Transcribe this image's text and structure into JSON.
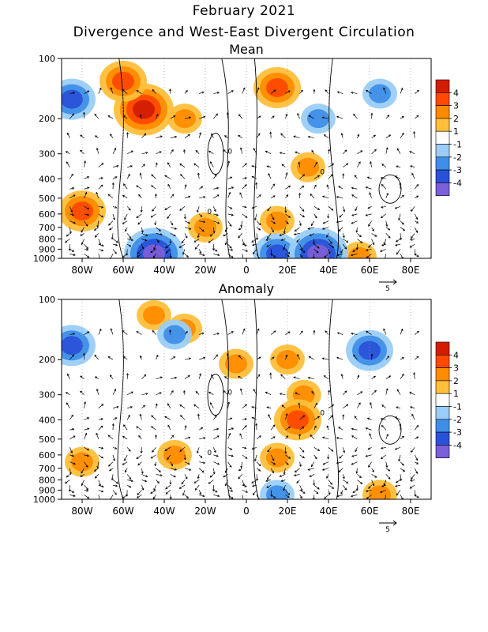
{
  "header": {
    "title": "February 2021",
    "subtitle": "Divergence and West-East Divergent Circulation"
  },
  "colors": {
    "scale": [
      "#7b5fd8",
      "#2a52d8",
      "#3f8fe8",
      "#9acdf7",
      "#ffffff",
      "#ffbf3a",
      "#ff8c00",
      "#ff4a00",
      "#d21e00"
    ],
    "contour": "#000000",
    "grid": "#9a9a9a",
    "vector": "#000000"
  },
  "chart_data": [
    {
      "type": "heatmap",
      "title": "Mean",
      "x_ticks": [
        "80W",
        "60W",
        "40W",
        "20W",
        "0",
        "20E",
        "40E",
        "60E",
        "80E"
      ],
      "x_tick_values": [
        -80,
        -60,
        -40,
        -20,
        0,
        20,
        40,
        60,
        80
      ],
      "xlim": [
        -90,
        90
      ],
      "y_ticks": [
        "100",
        "200",
        "300",
        "400",
        "500",
        "600",
        "700",
        "800",
        "900",
        "1000"
      ],
      "y_tick_values": [
        100,
        200,
        300,
        400,
        500,
        600,
        700,
        800,
        900,
        1000
      ],
      "ylim": [
        100,
        1000
      ],
      "y_scale": "log",
      "colorbar_labels": [
        "4",
        "3",
        "2",
        "1",
        "-1",
        "-2",
        "-3",
        "-4"
      ],
      "contour_labels": [
        "0",
        "0",
        "0"
      ],
      "vector_scale_label": "5",
      "features": [
        {
          "lon": -50,
          "p": 180,
          "value": 4
        },
        {
          "lon": -60,
          "p": 130,
          "value": 3
        },
        {
          "lon": -30,
          "p": 200,
          "value": 2
        },
        {
          "lon": 15,
          "p": 140,
          "value": 3
        },
        {
          "lon": 30,
          "p": 350,
          "value": 2
        },
        {
          "lon": -80,
          "p": 580,
          "value": 3
        },
        {
          "lon": -20,
          "p": 700,
          "value": 2
        },
        {
          "lon": 15,
          "p": 650,
          "value": 2
        },
        {
          "lon": 55,
          "p": 980,
          "value": 2
        },
        {
          "lon": -85,
          "p": 160,
          "value": -3
        },
        {
          "lon": 65,
          "p": 150,
          "value": -2
        },
        {
          "lon": 35,
          "p": 200,
          "value": -2
        },
        {
          "lon": -45,
          "p": 950,
          "value": -4
        },
        {
          "lon": 15,
          "p": 950,
          "value": -3
        },
        {
          "lon": 35,
          "p": 950,
          "value": -4
        }
      ]
    },
    {
      "type": "heatmap",
      "title": "Anomaly",
      "x_ticks": [
        "80W",
        "60W",
        "40W",
        "20W",
        "0",
        "20E",
        "40E",
        "60E",
        "80E"
      ],
      "x_tick_values": [
        -80,
        -60,
        -40,
        -20,
        0,
        20,
        40,
        60,
        80
      ],
      "xlim": [
        -90,
        90
      ],
      "y_ticks": [
        "100",
        "200",
        "300",
        "400",
        "500",
        "600",
        "700",
        "800",
        "900",
        "1000"
      ],
      "y_tick_values": [
        100,
        200,
        300,
        400,
        500,
        600,
        700,
        800,
        900,
        1000
      ],
      "ylim": [
        100,
        1000
      ],
      "y_scale": "log",
      "colorbar_labels": [
        "4",
        "3",
        "2",
        "1",
        "-1",
        "-2",
        "-3",
        "-4"
      ],
      "contour_labels": [
        "0",
        "0",
        "0"
      ],
      "vector_scale_label": "5",
      "features": [
        {
          "lon": -45,
          "p": 120,
          "value": 2
        },
        {
          "lon": -30,
          "p": 140,
          "value": 2
        },
        {
          "lon": -5,
          "p": 210,
          "value": 2
        },
        {
          "lon": 20,
          "p": 200,
          "value": 2
        },
        {
          "lon": 28,
          "p": 300,
          "value": 2
        },
        {
          "lon": 25,
          "p": 400,
          "value": 3
        },
        {
          "lon": -80,
          "p": 650,
          "value": 2
        },
        {
          "lon": -35,
          "p": 600,
          "value": 2
        },
        {
          "lon": 15,
          "p": 620,
          "value": 2
        },
        {
          "lon": 65,
          "p": 950,
          "value": 2
        },
        {
          "lon": -85,
          "p": 170,
          "value": -3
        },
        {
          "lon": 60,
          "p": 180,
          "value": -3
        },
        {
          "lon": -35,
          "p": 150,
          "value": -2
        },
        {
          "lon": 15,
          "p": 950,
          "value": -2
        }
      ]
    }
  ]
}
